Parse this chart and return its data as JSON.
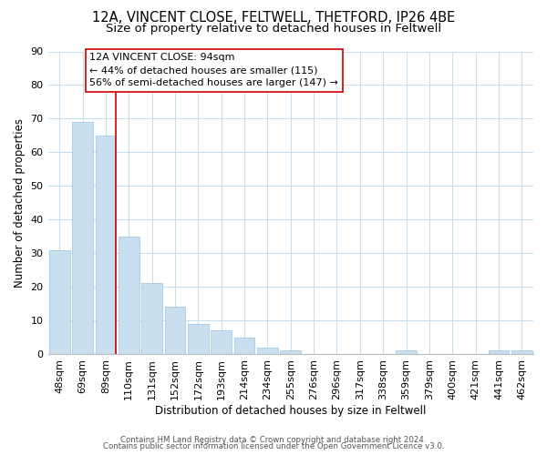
{
  "title": "12A, VINCENT CLOSE, FELTWELL, THETFORD, IP26 4BE",
  "subtitle": "Size of property relative to detached houses in Feltwell",
  "xlabel": "Distribution of detached houses by size in Feltwell",
  "ylabel": "Number of detached properties",
  "bar_labels": [
    "48sqm",
    "69sqm",
    "89sqm",
    "110sqm",
    "131sqm",
    "152sqm",
    "172sqm",
    "193sqm",
    "214sqm",
    "234sqm",
    "255sqm",
    "276sqm",
    "296sqm",
    "317sqm",
    "338sqm",
    "359sqm",
    "379sqm",
    "400sqm",
    "421sqm",
    "441sqm",
    "462sqm"
  ],
  "bar_values": [
    31,
    69,
    65,
    35,
    21,
    14,
    9,
    7,
    5,
    2,
    1,
    0,
    0,
    0,
    0,
    1,
    0,
    0,
    0,
    1,
    1
  ],
  "bar_color": "#c8dff0",
  "bar_edge_color": "#a8c8e8",
  "vline_x_index": 2,
  "vline_color": "#cc0000",
  "ylim": [
    0,
    90
  ],
  "yticks": [
    0,
    10,
    20,
    30,
    40,
    50,
    60,
    70,
    80,
    90
  ],
  "annotation_title": "12A VINCENT CLOSE: 94sqm",
  "annotation_line1": "← 44% of detached houses are smaller (115)",
  "annotation_line2": "56% of semi-detached houses are larger (147) →",
  "annotation_box_color": "#ffffff",
  "annotation_box_edgecolor": "#cc0000",
  "footer1": "Contains HM Land Registry data © Crown copyright and database right 2024.",
  "footer2": "Contains public sector information licensed under the Open Government Licence v3.0.",
  "background_color": "#ffffff",
  "grid_color": "#c8dff0",
  "title_fontsize": 10.5,
  "subtitle_fontsize": 9.5,
  "axis_fontsize": 8.5,
  "tick_fontsize": 8,
  "ann_fontsize": 8
}
